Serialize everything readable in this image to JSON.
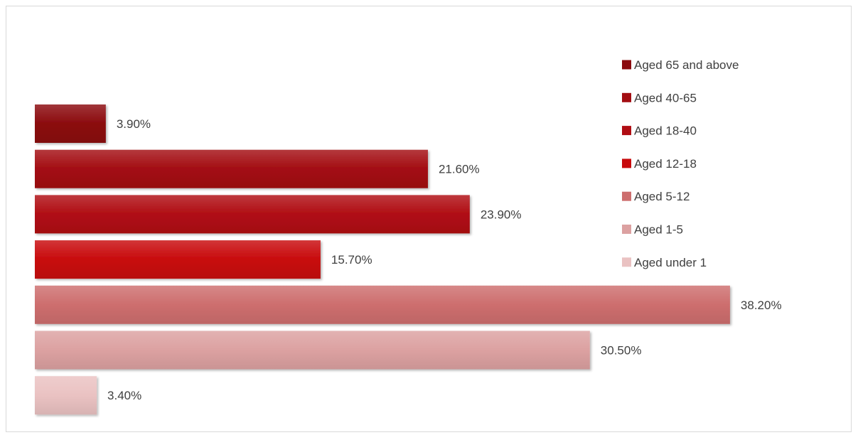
{
  "chart_data": {
    "type": "bar",
    "orientation": "horizontal",
    "categories": [
      "Aged 65 and above",
      "Aged 40-65",
      "Aged 18-40",
      "Aged 12-18",
      "Aged 5-12",
      "Aged 1-5",
      "Aged under 1"
    ],
    "values": [
      3.9,
      21.6,
      23.9,
      15.7,
      38.2,
      30.5,
      3.4
    ],
    "value_labels": [
      "3.90%",
      "21.60%",
      "23.90%",
      "15.70%",
      "38.20%",
      "30.50%",
      "3.40%"
    ],
    "colors": [
      "#8b0a0e",
      "#a30d12",
      "#b00d13",
      "#c80a0c",
      "#cd6e6e",
      "#dca1a1",
      "#eac2c2"
    ],
    "title": "",
    "xlabel": "",
    "ylabel": "",
    "xlim": [
      0,
      40
    ],
    "grid": false,
    "legend_position": "right"
  }
}
